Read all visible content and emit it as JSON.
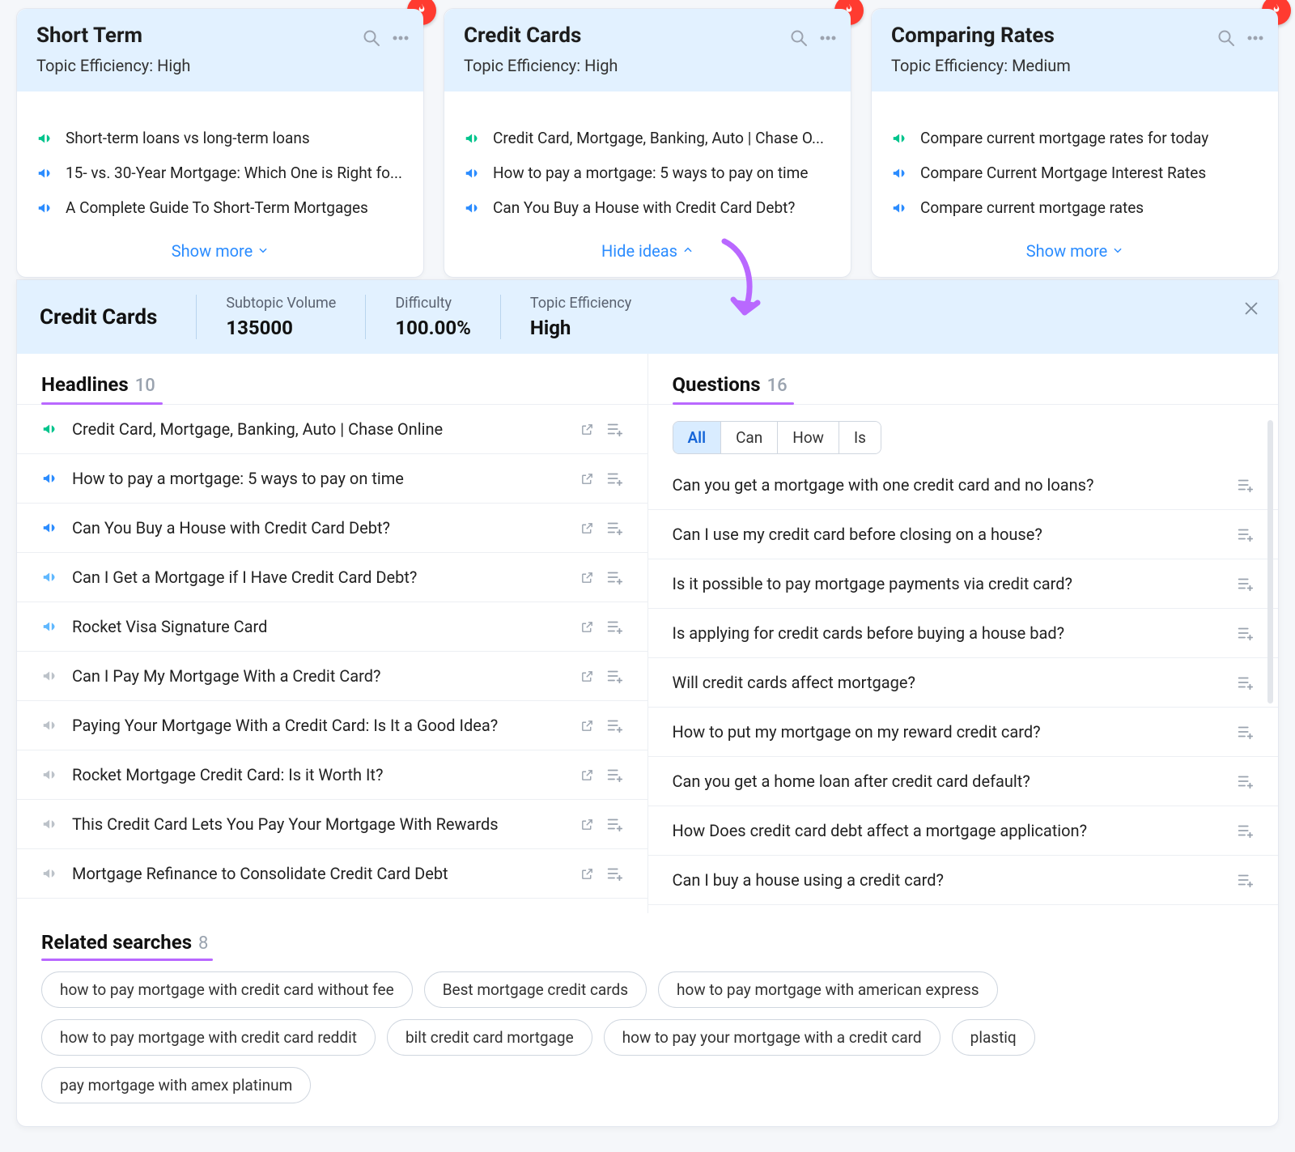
{
  "colors": {
    "card_head_bg": "#e2f1ff",
    "accent_blue": "#2b8cff",
    "accent_purple": "#b968ff",
    "fire_red": "#ff3b30",
    "icon_green": "#00c48c",
    "icon_blue": "#2b8cff",
    "icon_cyan": "#5fb8ff",
    "icon_grey": "#bcc2c9",
    "border": "#e4e8f0",
    "divider": "#eceff3",
    "muted": "#9aa3af",
    "body_bg": "#f5f7fa",
    "white": "#ffffff",
    "chip_active_bg": "#d9ecff",
    "chip_active_fg": "#1665d8"
  },
  "labels": {
    "topic_efficiency": "Topic Efficiency:",
    "show_more": "Show more",
    "hide_ideas": "Hide ideas",
    "subtopic_volume": "Subtopic Volume",
    "difficulty": "Difficulty",
    "topic_efficiency_stat": "Topic Efficiency",
    "headlines": "Headlines",
    "questions": "Questions",
    "related_searches": "Related searches"
  },
  "cards": [
    {
      "title": "Short Term",
      "eff": "High",
      "hot": true,
      "expanded": false,
      "ideas": [
        {
          "c": "green",
          "text": "Short-term loans vs long-term loans"
        },
        {
          "c": "blue",
          "text": "15- vs. 30-Year Mortgage: Which One is Right fo..."
        },
        {
          "c": "blue",
          "text": "A Complete Guide To Short-Term Mortgages"
        }
      ]
    },
    {
      "title": "Credit Cards",
      "eff": "High",
      "hot": true,
      "expanded": true,
      "ideas": [
        {
          "c": "green",
          "text": "Credit Card, Mortgage, Banking, Auto | Chase O..."
        },
        {
          "c": "blue",
          "text": "How to pay a mortgage: 5 ways to pay on time"
        },
        {
          "c": "blue",
          "text": "Can You Buy a House with Credit Card Debt?"
        }
      ]
    },
    {
      "title": "Comparing Rates",
      "eff": "Medium",
      "hot": true,
      "expanded": false,
      "ideas": [
        {
          "c": "green",
          "text": "Compare current mortgage rates for today"
        },
        {
          "c": "blue",
          "text": "Compare Current Mortgage Interest Rates"
        },
        {
          "c": "blue",
          "text": "Compare current mortgage rates"
        }
      ]
    }
  ],
  "detail": {
    "title": "Credit Cards",
    "stats": {
      "volume": "135000",
      "difficulty": "100.00%",
      "efficiency": "High"
    },
    "headlines_count": "10",
    "headlines_underline_width": 150,
    "headlines": [
      {
        "c": "green",
        "text": "Credit Card, Mortgage, Banking, Auto | Chase Online"
      },
      {
        "c": "blue",
        "text": "How to pay a mortgage: 5 ways to pay on time"
      },
      {
        "c": "blue",
        "text": "Can You Buy a House with Credit Card Debt?"
      },
      {
        "c": "cyan",
        "text": "Can I Get a Mortgage if I Have Credit Card Debt?"
      },
      {
        "c": "cyan",
        "text": "Rocket Visa Signature Card"
      },
      {
        "c": "grey",
        "text": "Can I Pay My Mortgage With a Credit Card?"
      },
      {
        "c": "grey",
        "text": "Paying Your Mortgage With a Credit Card: Is It a Good Idea?"
      },
      {
        "c": "grey",
        "text": "Rocket Mortgage Credit Card: Is it Worth It?"
      },
      {
        "c": "grey",
        "text": "This Credit Card Lets You Pay Your Mortgage With Rewards"
      },
      {
        "c": "grey",
        "text": "Mortgage Refinance to Consolidate Credit Card Debt"
      }
    ],
    "questions_count": "16",
    "questions_underline_width": 150,
    "question_filters": [
      "All",
      "Can",
      "How",
      "Is"
    ],
    "question_filter_active": 0,
    "questions": [
      "Can you get a mortgage with one credit card and no loans?",
      "Can I use my credit card before closing on a house?",
      "Is it possible to pay mortgage payments via credit card?",
      "Is applying for credit cards before buying a house bad?",
      "Will credit cards affect mortgage?",
      "How to put my mortgage on my reward credit card?",
      "Can you get a home loan after credit card default?",
      "How Does credit card debt affect a mortgage application?",
      "Can I buy a house using a credit card?"
    ],
    "related_count": "8",
    "related": [
      "how to pay mortgage with credit card without fee",
      "Best mortgage credit cards",
      "how to pay mortgage with american express",
      "how to pay mortgage with credit card reddit",
      "bilt credit card mortgage",
      "how to pay your mortgage with a credit card",
      "plastiq",
      "pay mortgage with amex platinum"
    ]
  }
}
